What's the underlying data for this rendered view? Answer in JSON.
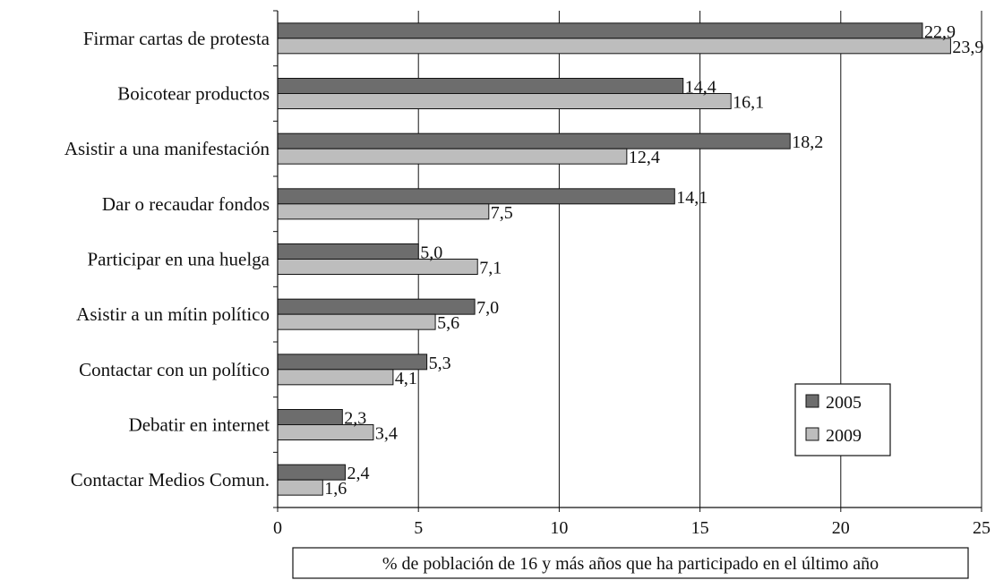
{
  "chart_data": {
    "type": "bar",
    "orientation": "horizontal",
    "categories": [
      "Firmar cartas de protesta",
      "Boicotear productos",
      "Asistir a una manifestación",
      "Dar o recaudar fondos",
      "Participar en una huelga",
      "Asistir a un mítin político",
      "Contactar con un político",
      "Debatir en internet",
      "Contactar Medios Comun."
    ],
    "series": [
      {
        "name": "2005",
        "color": "#6d6d6d",
        "values": [
          22.9,
          14.4,
          18.2,
          14.1,
          5.0,
          7.0,
          5.3,
          2.3,
          2.4
        ],
        "labels": [
          "22,9",
          "14,4",
          "18,2",
          "14,1",
          "5,0",
          "7,0",
          "5,3",
          "2,3",
          "2,4"
        ]
      },
      {
        "name": "2009",
        "color": "#bdbdbd",
        "values": [
          23.9,
          16.1,
          12.4,
          7.5,
          7.1,
          5.6,
          4.1,
          3.4,
          1.6
        ],
        "labels": [
          "23,9",
          "16,1",
          "12,4",
          "7,5",
          "7,1",
          "5,6",
          "4,1",
          "3,4",
          "1,6"
        ]
      }
    ],
    "xlim": [
      0,
      25
    ],
    "xticks": [
      0,
      5,
      10,
      15,
      20,
      25
    ],
    "xlabel": "% de población de 16 y más años que ha participado en el último año",
    "ylabel": "",
    "title": "",
    "grid": "vertical",
    "legend_position": "bottom-right"
  }
}
